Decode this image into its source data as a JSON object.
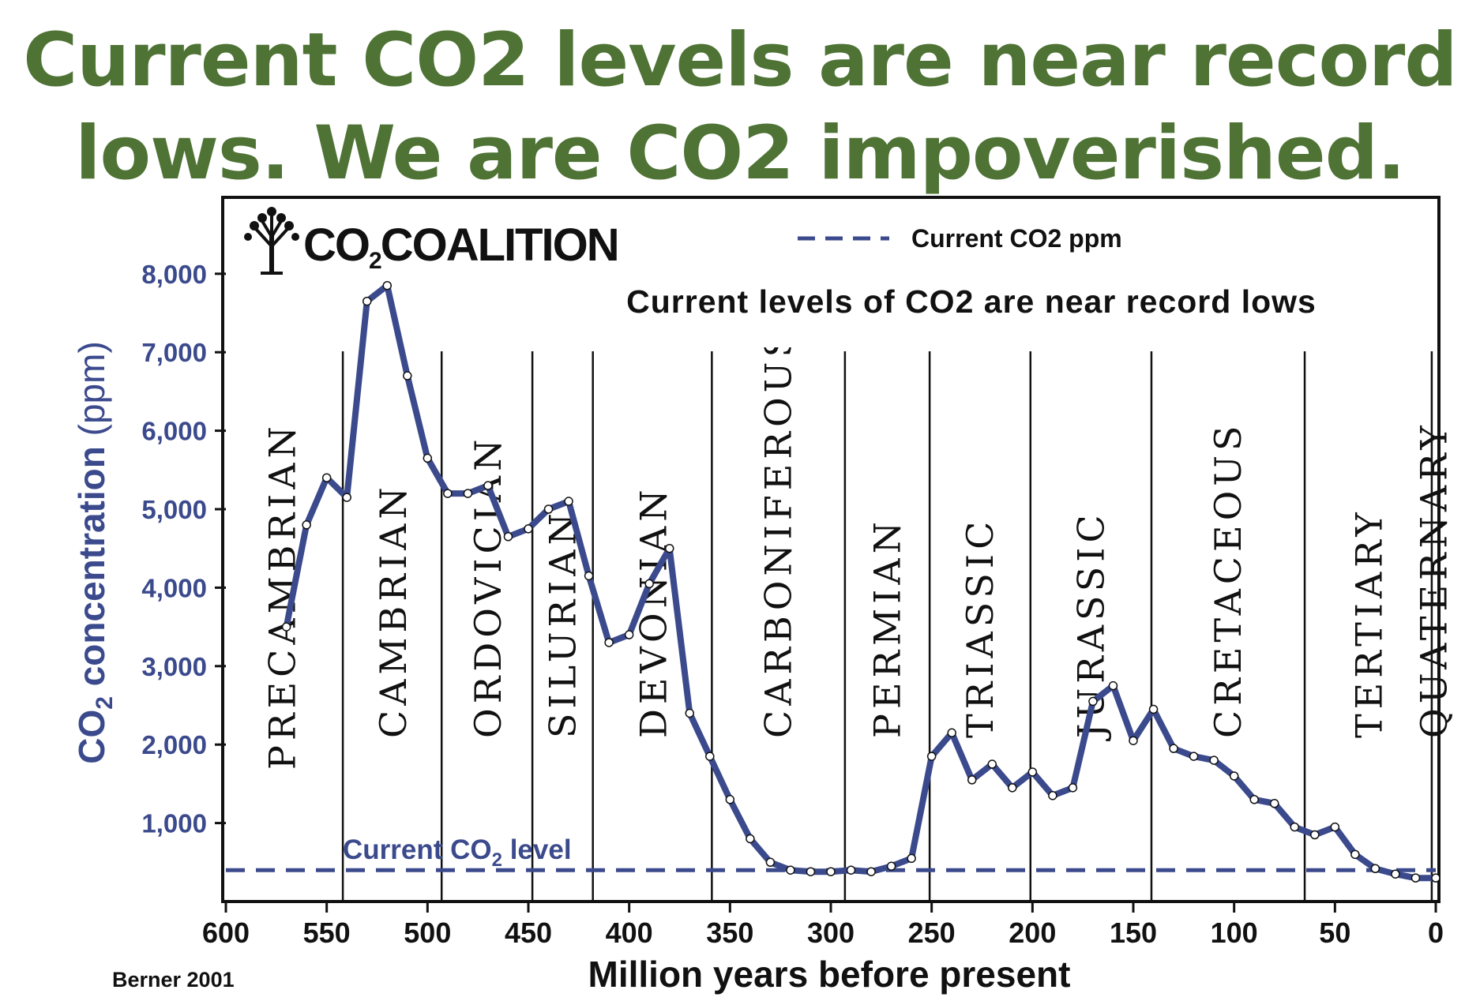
{
  "headline": {
    "line1": "Current CO2 levels are near record",
    "line2": "lows. We are CO2 impoverished."
  },
  "brand": {
    "icon": "tree-icon",
    "name_prefix": "CO",
    "name_sub": "2",
    "name_suffix": "COALITION"
  },
  "legend": {
    "dashed_label": "Current CO2 ppm"
  },
  "chart_subtitle": "Current levels of CO2 are near record lows",
  "current_level_label": {
    "prefix": "Current CO",
    "sub": "2",
    "suffix": " level"
  },
  "source_label": "Berner 2001",
  "colors": {
    "headline": "#4e7335",
    "series": "#3b4a8c",
    "axis_text": "#3b4a8c"
  },
  "chart_data": {
    "type": "line",
    "title": "Current levels of CO2 are near record lows",
    "xlabel": "Million years before present",
    "ylabel": {
      "prefix": "CO",
      "sub": "2",
      "suffix": " concentration",
      "unit": " (ppm)"
    },
    "xlim": [
      600,
      0
    ],
    "ylim": [
      0,
      8500
    ],
    "x_ticks": [
      600,
      550,
      500,
      450,
      400,
      350,
      300,
      250,
      200,
      150,
      100,
      50,
      0
    ],
    "x_tick_labels": [
      "600",
      "550",
      "500",
      "450",
      "400",
      "350",
      "300",
      "250",
      "200",
      "150",
      "100",
      "50",
      "0"
    ],
    "y_ticks": [
      1000,
      2000,
      3000,
      4000,
      5000,
      6000,
      7000,
      8000
    ],
    "y_tick_labels": [
      "1,000",
      "2,000",
      "3,000",
      "4,000",
      "5,000",
      "6,000",
      "7,000",
      "8,000"
    ],
    "current_level": 400,
    "period_boundaries": [
      542,
      493,
      448,
      418,
      359,
      293,
      251,
      201,
      141,
      65,
      2
    ],
    "periods": [
      {
        "name": "PRECAMBRIAN",
        "mid": 572
      },
      {
        "name": "CAMBRIAN",
        "mid": 517
      },
      {
        "name": "ORDOVICIAN",
        "mid": 470
      },
      {
        "name": "SILURIAN",
        "mid": 433
      },
      {
        "name": "DEVONIAN",
        "mid": 388
      },
      {
        "name": "CARBONIFEROUS",
        "mid": 326
      },
      {
        "name": "PERMIAN",
        "mid": 272
      },
      {
        "name": "TRIASSIC",
        "mid": 226
      },
      {
        "name": "JURASSIC",
        "mid": 171
      },
      {
        "name": "CRETACEOUS",
        "mid": 103
      },
      {
        "name": "TERTIARY",
        "mid": 33
      },
      {
        "name": "QUATERNARY",
        "mid": 1
      }
    ],
    "series": [
      {
        "name": "CO2 concentration",
        "x": [
          570,
          560,
          550,
          540,
          530,
          520,
          510,
          500,
          490,
          480,
          470,
          460,
          450,
          440,
          430,
          420,
          410,
          400,
          390,
          380,
          370,
          360,
          350,
          340,
          330,
          320,
          310,
          300,
          290,
          280,
          270,
          260,
          250,
          240,
          230,
          220,
          210,
          200,
          190,
          180,
          170,
          160,
          150,
          140,
          130,
          120,
          110,
          100,
          90,
          80,
          70,
          60,
          50,
          40,
          30,
          20,
          10,
          0
        ],
        "y": [
          3500,
          4800,
          5400,
          5150,
          7650,
          7850,
          6700,
          5650,
          5200,
          5200,
          5300,
          4650,
          4750,
          5000,
          5100,
          4150,
          3300,
          3400,
          4050,
          4500,
          2400,
          1850,
          1300,
          800,
          500,
          400,
          380,
          380,
          400,
          380,
          450,
          550,
          1850,
          2150,
          1550,
          1750,
          1450,
          1650,
          1350,
          1450,
          2550,
          2750,
          2050,
          2450,
          1950,
          1850,
          1800,
          1600,
          1300,
          1250,
          950,
          850,
          950,
          600,
          420,
          350,
          300,
          300
        ]
      }
    ]
  }
}
